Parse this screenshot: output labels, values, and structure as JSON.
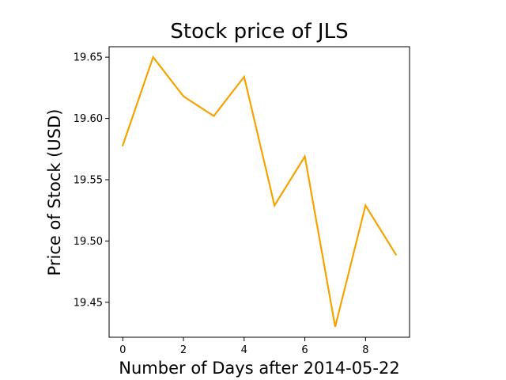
{
  "chart_data": {
    "type": "line",
    "title": "Stock price of JLS",
    "xlabel": "Number of Days after 2014-05-22",
    "ylabel": "Price of Stock (USD)",
    "x": [
      0,
      1,
      2,
      3,
      4,
      5,
      6,
      7,
      8,
      9
    ],
    "series": [
      {
        "values": [
          19.578,
          19.65,
          19.618,
          19.602,
          19.634,
          19.529,
          19.569,
          19.43,
          19.529,
          19.489
        ],
        "color": "#f5a300"
      }
    ],
    "xlim": [
      -0.45,
      9.45
    ],
    "ylim": [
      19.4215,
      19.6585
    ],
    "x_ticks": [
      0,
      2,
      4,
      6,
      8
    ],
    "x_tick_labels": [
      "0",
      "2",
      "4",
      "6",
      "8"
    ],
    "y_ticks": [
      19.45,
      19.5,
      19.55,
      19.6,
      19.65
    ],
    "y_tick_labels": [
      "19.45",
      "19.50",
      "19.55",
      "19.60",
      "19.65"
    ],
    "grid": false,
    "legend": "none"
  }
}
